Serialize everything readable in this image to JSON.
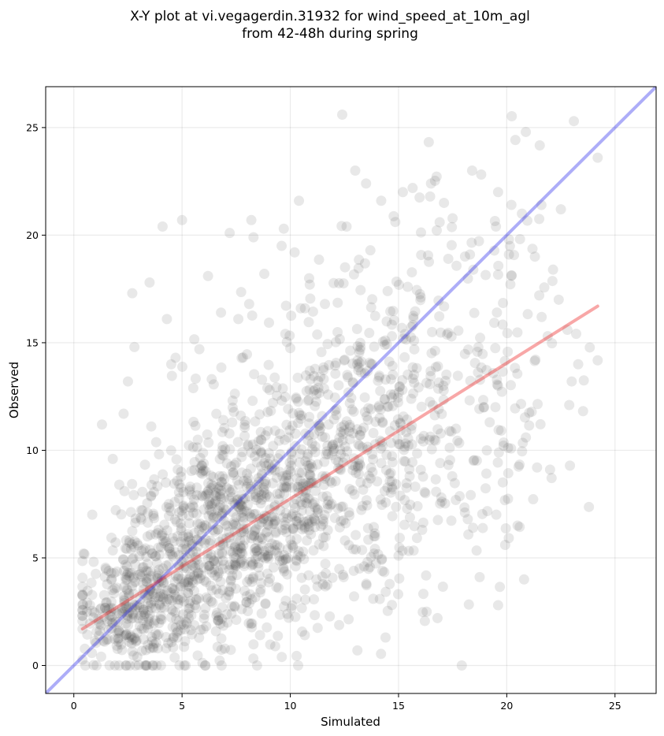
{
  "chart_data": {
    "type": "scatter",
    "title": [
      "X-Y plot at vi.vegagerdin.31932 for wind_speed_at_10m_agl",
      "from 42-48h during spring"
    ],
    "xlabel": "Simulated",
    "ylabel": "Observed",
    "xlim": [
      -1.3,
      26.9
    ],
    "ylim": [
      -1.3,
      26.9
    ],
    "xticks": [
      0,
      5,
      10,
      15,
      20,
      25
    ],
    "yticks": [
      0,
      5,
      10,
      15,
      20,
      25
    ],
    "grid": true,
    "point_color": "#404040",
    "point_alpha": 0.12,
    "one_to_one_line": {
      "from": [
        -1.3,
        -1.3
      ],
      "to": [
        26.9,
        26.9
      ],
      "color": "#3333ee",
      "alpha": 0.4
    },
    "fit_line": {
      "from": [
        0.4,
        1.7
      ],
      "to": [
        24.2,
        16.7
      ],
      "color": "#ee2222",
      "alpha": 0.4
    },
    "points_summary": {
      "count_estimate": 1900,
      "x_range": [
        0.4,
        24.2
      ],
      "y_range": [
        0,
        25.6
      ],
      "fit_slope": 0.63,
      "fit_intercept": 1.45
    },
    "notable_points": [
      {
        "x": 12.4,
        "y": 25.6
      },
      {
        "x": 23.1,
        "y": 25.3
      },
      {
        "x": 24.2,
        "y": 23.6
      },
      {
        "x": 13.0,
        "y": 23.0
      },
      {
        "x": 18.4,
        "y": 23.0
      },
      {
        "x": 13.5,
        "y": 22.4
      },
      {
        "x": 16.5,
        "y": 22.4
      },
      {
        "x": 19.6,
        "y": 22.0
      },
      {
        "x": 15.2,
        "y": 22.0
      },
      {
        "x": 10.4,
        "y": 21.6
      },
      {
        "x": 14.2,
        "y": 21.6
      },
      {
        "x": 17.1,
        "y": 21.5
      },
      {
        "x": 21.6,
        "y": 21.4
      },
      {
        "x": 22.5,
        "y": 21.2
      },
      {
        "x": 20.7,
        "y": 21.0
      },
      {
        "x": 4.1,
        "y": 20.4
      },
      {
        "x": 5.0,
        "y": 20.7
      },
      {
        "x": 8.2,
        "y": 20.7
      },
      {
        "x": 7.2,
        "y": 20.1
      },
      {
        "x": 9.7,
        "y": 20.3
      },
      {
        "x": 12.6,
        "y": 20.4
      },
      {
        "x": 8.3,
        "y": 19.9
      },
      {
        "x": 9.6,
        "y": 19.5
      },
      {
        "x": 10.2,
        "y": 19.2
      },
      {
        "x": 16.9,
        "y": 20.6
      },
      {
        "x": 19.5,
        "y": 20.4
      },
      {
        "x": 20.1,
        "y": 19.8
      },
      {
        "x": 20.1,
        "y": 19.1
      },
      {
        "x": 18.3,
        "y": 19.1
      },
      {
        "x": 17.3,
        "y": 18.9
      },
      {
        "x": 6.2,
        "y": 18.1
      },
      {
        "x": 3.5,
        "y": 17.8
      },
      {
        "x": 8.8,
        "y": 18.2
      },
      {
        "x": 2.7,
        "y": 17.3
      },
      {
        "x": 10.9,
        "y": 17.7
      },
      {
        "x": 21.3,
        "y": 19.0
      },
      {
        "x": 4.3,
        "y": 16.1
      },
      {
        "x": 6.8,
        "y": 16.4
      },
      {
        "x": 7.6,
        "y": 16.1
      },
      {
        "x": 8.1,
        "y": 16.8
      },
      {
        "x": 11.6,
        "y": 16.8
      },
      {
        "x": 21.5,
        "y": 17.2
      },
      {
        "x": 2.8,
        "y": 14.8
      },
      {
        "x": 4.7,
        "y": 14.3
      },
      {
        "x": 5.8,
        "y": 14.7
      },
      {
        "x": 4.5,
        "y": 14.0
      },
      {
        "x": 2.5,
        "y": 13.2
      },
      {
        "x": 1.3,
        "y": 11.2
      },
      {
        "x": 2.3,
        "y": 11.7
      },
      {
        "x": 1.8,
        "y": 9.6
      },
      {
        "x": 2.1,
        "y": 8.4
      },
      {
        "x": 22.0,
        "y": 9.1
      },
      {
        "x": 21.4,
        "y": 9.2
      },
      {
        "x": 20.5,
        "y": 6.5
      },
      {
        "x": 20.8,
        "y": 4.0
      },
      {
        "x": 19.6,
        "y": 2.8
      },
      {
        "x": 16.8,
        "y": 2.2
      },
      {
        "x": 16.3,
        "y": 2.5
      },
      {
        "x": 14.4,
        "y": 1.3
      },
      {
        "x": 13.1,
        "y": 0.7
      },
      {
        "x": 5.1,
        "y": 0.0
      },
      {
        "x": 1.9,
        "y": 0.0
      },
      {
        "x": 23.3,
        "y": 14.0
      },
      {
        "x": 22.8,
        "y": 15.6
      },
      {
        "x": 22.4,
        "y": 17.0
      },
      {
        "x": 23.0,
        "y": 13.2
      }
    ],
    "density_clusters": [
      {
        "cx": 2.5,
        "cy": 2.3,
        "sx": 1.3,
        "sy": 1.4,
        "n": 230
      },
      {
        "cx": 4.8,
        "cy": 4.6,
        "sx": 1.8,
        "sy": 2.0,
        "n": 330
      },
      {
        "cx": 7.5,
        "cy": 6.6,
        "sx": 2.0,
        "sy": 2.4,
        "n": 420
      },
      {
        "cx": 10.2,
        "cy": 8.3,
        "sx": 2.2,
        "sy": 3.2,
        "n": 330
      },
      {
        "cx": 13.0,
        "cy": 10.3,
        "sx": 2.2,
        "sy": 3.6,
        "n": 250
      },
      {
        "cx": 15.8,
        "cy": 11.7,
        "sx": 2.2,
        "sy": 4.2,
        "n": 180
      },
      {
        "cx": 18.6,
        "cy": 13.0,
        "sx": 2.0,
        "sy": 4.6,
        "n": 100
      },
      {
        "cx": 21.0,
        "cy": 14.2,
        "sx": 1.6,
        "sy": 4.4,
        "n": 40
      }
    ]
  }
}
